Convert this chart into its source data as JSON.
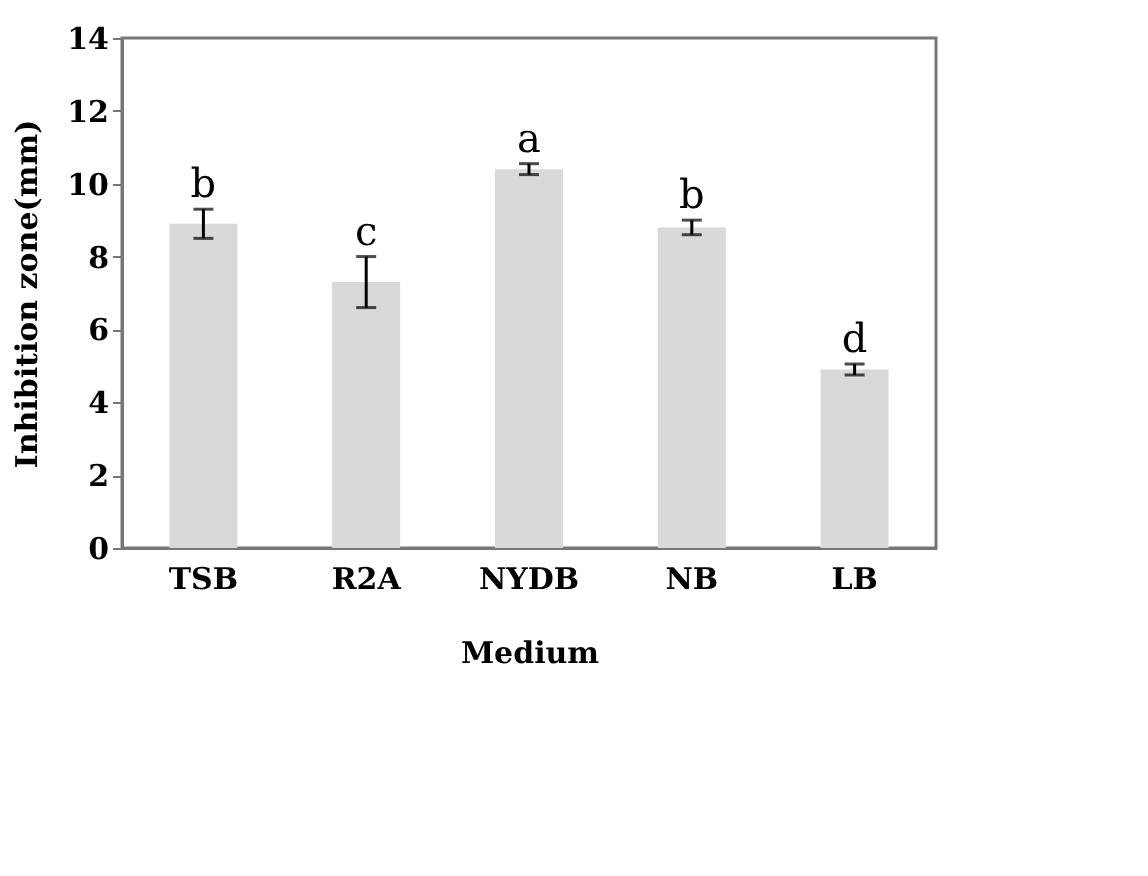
{
  "chart_data": {
    "type": "bar",
    "xlabel": "Medium",
    "ylabel": "Inhibition  zone(mm)",
    "categories": [
      "TSB",
      "R2A",
      "NYDB",
      "NB",
      "LB"
    ],
    "values": [
      8.9,
      7.3,
      10.4,
      8.8,
      4.9
    ],
    "errors": [
      0.4,
      0.7,
      0.15,
      0.2,
      0.15
    ],
    "color": "#d9d9d9",
    "ylim": [
      0,
      14
    ],
    "yticks": [
      0,
      2,
      4,
      6,
      8,
      10,
      12,
      14
    ],
    "grid": false,
    "annotations": [
      {
        "text": "b",
        "x": "TSB",
        "y": 9.3
      },
      {
        "text": "c",
        "x": "R2A",
        "y": 8.0
      },
      {
        "text": "a",
        "x": "NYDB",
        "y": 10.55
      },
      {
        "text": "b",
        "x": "NB",
        "y": 9.0
      },
      {
        "text": "d",
        "x": "LB",
        "y": 5.05
      }
    ]
  }
}
